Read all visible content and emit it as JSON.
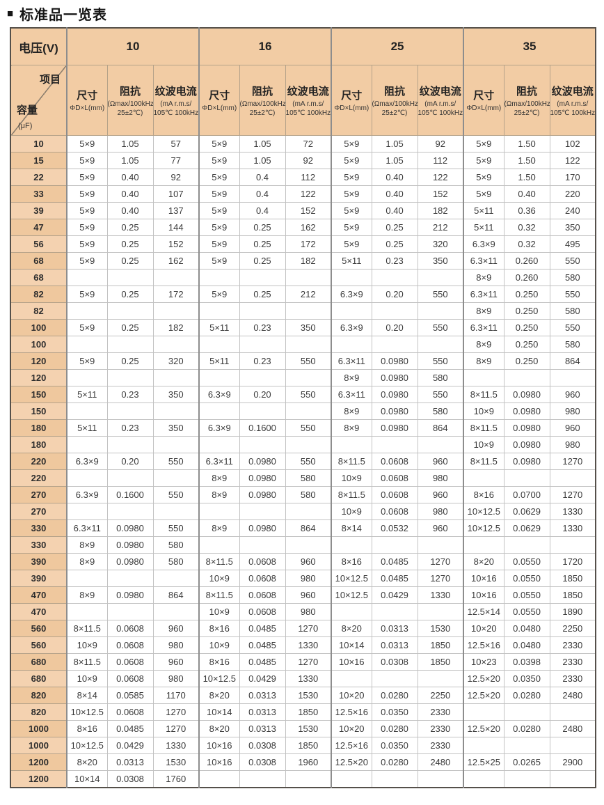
{
  "title": {
    "bullet": "■",
    "text": "标准品一览表"
  },
  "colors": {
    "header_bg": "#f2cca4",
    "label_bg": "#f4d2b0",
    "label_bg_alt": "#efc89e",
    "outer_border": "#55504a",
    "group_separator": "#8d8d8d",
    "text": "#2d2d2d"
  },
  "header": {
    "voltage_label": "电压(V)",
    "voltages": [
      "10",
      "16",
      "25",
      "35"
    ],
    "corner": {
      "top_right": "项目",
      "bottom_left": "容量",
      "unit": "(μF)"
    },
    "columns": [
      {
        "key": "size",
        "name": "尺寸",
        "lines": [
          "ΦD×L(mm)"
        ]
      },
      {
        "key": "impedance",
        "name": "阻抗",
        "lines": [
          "(Ωmax/100kHz",
          "25±2℃)"
        ]
      },
      {
        "key": "ripple",
        "name": "纹波电流",
        "lines": [
          "(mA r.m.s/",
          "105℃ 100kHz)"
        ]
      }
    ]
  },
  "rows": [
    {
      "capacitance": "10",
      "values": [
        "5×9",
        "1.05",
        "57",
        "5×9",
        "1.05",
        "72",
        "5×9",
        "1.05",
        "92",
        "5×9",
        "1.50",
        "102"
      ]
    },
    {
      "capacitance": "15",
      "values": [
        "5×9",
        "1.05",
        "77",
        "5×9",
        "1.05",
        "92",
        "5×9",
        "1.05",
        "112",
        "5×9",
        "1.50",
        "122"
      ]
    },
    {
      "capacitance": "22",
      "values": [
        "5×9",
        "0.40",
        "92",
        "5×9",
        "0.4",
        "112",
        "5×9",
        "0.40",
        "122",
        "5×9",
        "1.50",
        "170"
      ]
    },
    {
      "capacitance": "33",
      "values": [
        "5×9",
        "0.40",
        "107",
        "5×9",
        "0.4",
        "122",
        "5×9",
        "0.40",
        "152",
        "5×9",
        "0.40",
        "220"
      ]
    },
    {
      "capacitance": "39",
      "values": [
        "5×9",
        "0.40",
        "137",
        "5×9",
        "0.4",
        "152",
        "5×9",
        "0.40",
        "182",
        "5×11",
        "0.36",
        "240"
      ]
    },
    {
      "capacitance": "47",
      "values": [
        "5×9",
        "0.25",
        "144",
        "5×9",
        "0.25",
        "162",
        "5×9",
        "0.25",
        "212",
        "5×11",
        "0.32",
        "350"
      ]
    },
    {
      "capacitance": "56",
      "values": [
        "5×9",
        "0.25",
        "152",
        "5×9",
        "0.25",
        "172",
        "5×9",
        "0.25",
        "320",
        "6.3×9",
        "0.32",
        "495"
      ]
    },
    {
      "capacitance": "68",
      "values": [
        "5×9",
        "0.25",
        "162",
        "5×9",
        "0.25",
        "182",
        "5×11",
        "0.23",
        "350",
        "6.3×11",
        "0.260",
        "550"
      ]
    },
    {
      "capacitance": "68",
      "values": [
        "",
        "",
        "",
        "",
        "",
        "",
        "",
        "",
        "",
        "8×9",
        "0.260",
        "580"
      ]
    },
    {
      "capacitance": "82",
      "values": [
        "5×9",
        "0.25",
        "172",
        "5×9",
        "0.25",
        "212",
        "6.3×9",
        "0.20",
        "550",
        "6.3×11",
        "0.250",
        "550"
      ]
    },
    {
      "capacitance": "82",
      "values": [
        "",
        "",
        "",
        "",
        "",
        "",
        "",
        "",
        "",
        "8×9",
        "0.250",
        "580"
      ]
    },
    {
      "capacitance": "100",
      "values": [
        "5×9",
        "0.25",
        "182",
        "5×11",
        "0.23",
        "350",
        "6.3×9",
        "0.20",
        "550",
        "6.3×11",
        "0.250",
        "550"
      ]
    },
    {
      "capacitance": "100",
      "values": [
        "",
        "",
        "",
        "",
        "",
        "",
        "",
        "",
        "",
        "8×9",
        "0.250",
        "580"
      ]
    },
    {
      "capacitance": "120",
      "values": [
        "5×9",
        "0.25",
        "320",
        "5×11",
        "0.23",
        "550",
        "6.3×11",
        "0.0980",
        "550",
        "8×9",
        "0.250",
        "864"
      ]
    },
    {
      "capacitance": "120",
      "values": [
        "",
        "",
        "",
        "",
        "",
        "",
        "8×9",
        "0.0980",
        "580",
        "",
        "",
        ""
      ]
    },
    {
      "capacitance": "150",
      "values": [
        "5×11",
        "0.23",
        "350",
        "6.3×9",
        "0.20",
        "550",
        "6.3×11",
        "0.0980",
        "550",
        "8×11.5",
        "0.0980",
        "960"
      ]
    },
    {
      "capacitance": "150",
      "values": [
        "",
        "",
        "",
        "",
        "",
        "",
        "8×9",
        "0.0980",
        "580",
        "10×9",
        "0.0980",
        "980"
      ]
    },
    {
      "capacitance": "180",
      "values": [
        "5×11",
        "0.23",
        "350",
        "6.3×9",
        "0.1600",
        "550",
        "8×9",
        "0.0980",
        "864",
        "8×11.5",
        "0.0980",
        "960"
      ]
    },
    {
      "capacitance": "180",
      "values": [
        "",
        "",
        "",
        "",
        "",
        "",
        "",
        "",
        "",
        "10×9",
        "0.0980",
        "980"
      ]
    },
    {
      "capacitance": "220",
      "values": [
        "6.3×9",
        "0.20",
        "550",
        "6.3×11",
        "0.0980",
        "550",
        "8×11.5",
        "0.0608",
        "960",
        "8×11.5",
        "0.0980",
        "1270"
      ]
    },
    {
      "capacitance": "220",
      "values": [
        "",
        "",
        "",
        "8×9",
        "0.0980",
        "580",
        "10×9",
        "0.0608",
        "980",
        "",
        "",
        ""
      ]
    },
    {
      "capacitance": "270",
      "values": [
        "6.3×9",
        "0.1600",
        "550",
        "8×9",
        "0.0980",
        "580",
        "8×11.5",
        "0.0608",
        "960",
        "8×16",
        "0.0700",
        "1270"
      ]
    },
    {
      "capacitance": "270",
      "values": [
        "",
        "",
        "",
        "",
        "",
        "",
        "10×9",
        "0.0608",
        "980",
        "10×12.5",
        "0.0629",
        "1330"
      ]
    },
    {
      "capacitance": "330",
      "values": [
        "6.3×11",
        "0.0980",
        "550",
        "8×9",
        "0.0980",
        "864",
        "8×14",
        "0.0532",
        "960",
        "10×12.5",
        "0.0629",
        "1330"
      ]
    },
    {
      "capacitance": "330",
      "values": [
        "8×9",
        "0.0980",
        "580",
        "",
        "",
        "",
        "",
        "",
        "",
        "",
        "",
        ""
      ]
    },
    {
      "capacitance": "390",
      "values": [
        "8×9",
        "0.0980",
        "580",
        "8×11.5",
        "0.0608",
        "960",
        "8×16",
        "0.0485",
        "1270",
        "8×20",
        "0.0550",
        "1720"
      ]
    },
    {
      "capacitance": "390",
      "values": [
        "",
        "",
        "",
        "10×9",
        "0.0608",
        "980",
        "10×12.5",
        "0.0485",
        "1270",
        "10×16",
        "0.0550",
        "1850"
      ]
    },
    {
      "capacitance": "470",
      "values": [
        "8×9",
        "0.0980",
        "864",
        "8×11.5",
        "0.0608",
        "960",
        "10×12.5",
        "0.0429",
        "1330",
        "10×16",
        "0.0550",
        "1850"
      ]
    },
    {
      "capacitance": "470",
      "values": [
        "",
        "",
        "",
        "10×9",
        "0.0608",
        "980",
        "",
        "",
        "",
        "12.5×14",
        "0.0550",
        "1890"
      ]
    },
    {
      "capacitance": "560",
      "values": [
        "8×11.5",
        "0.0608",
        "960",
        "8×16",
        "0.0485",
        "1270",
        "8×20",
        "0.0313",
        "1530",
        "10×20",
        "0.0480",
        "2250"
      ]
    },
    {
      "capacitance": "560",
      "values": [
        "10×9",
        "0.0608",
        "980",
        "10×9",
        "0.0485",
        "1330",
        "10×14",
        "0.0313",
        "1850",
        "12.5×16",
        "0.0480",
        "2330"
      ]
    },
    {
      "capacitance": "680",
      "values": [
        "8×11.5",
        "0.0608",
        "960",
        "8×16",
        "0.0485",
        "1270",
        "10×16",
        "0.0308",
        "1850",
        "10×23",
        "0.0398",
        "2330"
      ]
    },
    {
      "capacitance": "680",
      "values": [
        "10×9",
        "0.0608",
        "980",
        "10×12.5",
        "0.0429",
        "1330",
        "",
        "",
        "",
        "12.5×20",
        "0.0350",
        "2330"
      ]
    },
    {
      "capacitance": "820",
      "values": [
        "8×14",
        "0.0585",
        "1170",
        "8×20",
        "0.0313",
        "1530",
        "10×20",
        "0.0280",
        "2250",
        "12.5×20",
        "0.0280",
        "2480"
      ]
    },
    {
      "capacitance": "820",
      "values": [
        "10×12.5",
        "0.0608",
        "1270",
        "10×14",
        "0.0313",
        "1850",
        "12.5×16",
        "0.0350",
        "2330",
        "",
        "",
        ""
      ]
    },
    {
      "capacitance": "1000",
      "values": [
        "8×16",
        "0.0485",
        "1270",
        "8×20",
        "0.0313",
        "1530",
        "10×20",
        "0.0280",
        "2330",
        "12.5×20",
        "0.0280",
        "2480"
      ]
    },
    {
      "capacitance": "1000",
      "values": [
        "10×12.5",
        "0.0429",
        "1330",
        "10×16",
        "0.0308",
        "1850",
        "12.5×16",
        "0.0350",
        "2330",
        "",
        "",
        ""
      ]
    },
    {
      "capacitance": "1200",
      "values": [
        "8×20",
        "0.0313",
        "1530",
        "10×16",
        "0.0308",
        "1960",
        "12.5×20",
        "0.0280",
        "2480",
        "12.5×25",
        "0.0265",
        "2900"
      ]
    },
    {
      "capacitance": "1200",
      "values": [
        "10×14",
        "0.0308",
        "1760",
        "",
        "",
        "",
        "",
        "",
        "",
        "",
        "",
        ""
      ]
    }
  ]
}
